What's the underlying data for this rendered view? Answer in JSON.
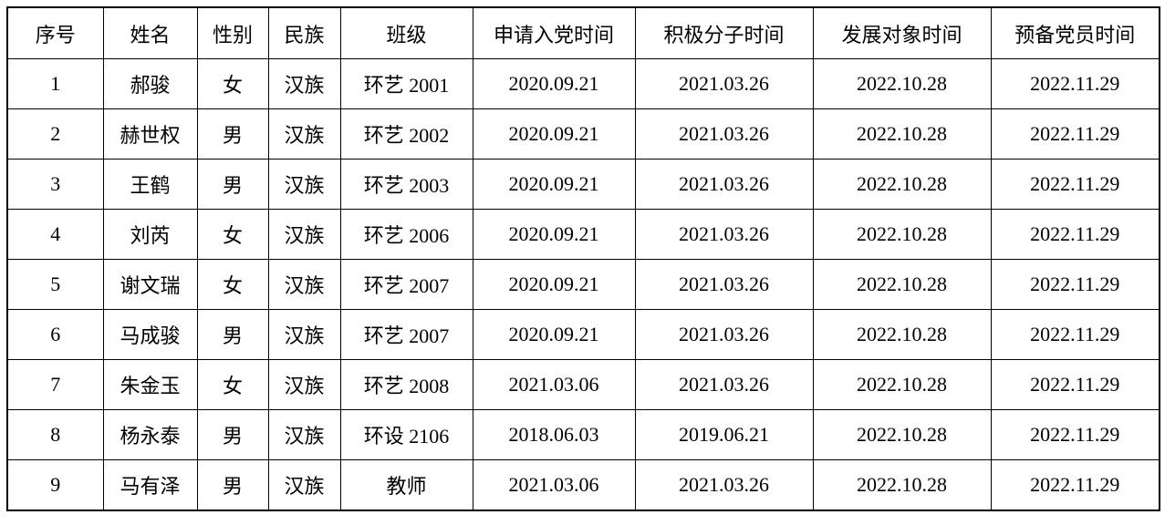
{
  "page": {
    "background_color": "#ffffff",
    "text_color": "#000000",
    "border_color": "#000000"
  },
  "table": {
    "headers": [
      "序号",
      "姓名",
      "性别",
      "民族",
      "班级",
      "申请入党时间",
      "积极分子时间",
      "发展对象时间",
      "预备党员时间"
    ],
    "rows": [
      [
        "1",
        "郝骏",
        "女",
        "汉族",
        "环艺 2001",
        "2020.09.21",
        "2021.03.26",
        "2022.10.28",
        "2022.11.29"
      ],
      [
        "2",
        "赫世权",
        "男",
        "汉族",
        "环艺 2002",
        "2020.09.21",
        "2021.03.26",
        "2022.10.28",
        "2022.11.29"
      ],
      [
        "3",
        "王鹤",
        "男",
        "汉族",
        "环艺 2003",
        "2020.09.21",
        "2021.03.26",
        "2022.10.28",
        "2022.11.29"
      ],
      [
        "4",
        "刘芮",
        "女",
        "汉族",
        "环艺 2006",
        "2020.09.21",
        "2021.03.26",
        "2022.10.28",
        "2022.11.29"
      ],
      [
        "5",
        "谢文瑞",
        "女",
        "汉族",
        "环艺 2007",
        "2020.09.21",
        "2021.03.26",
        "2022.10.28",
        "2022.11.29"
      ],
      [
        "6",
        "马成骏",
        "男",
        "汉族",
        "环艺 2007",
        "2020.09.21",
        "2021.03.26",
        "2022.10.28",
        "2022.11.29"
      ],
      [
        "7",
        "朱金玉",
        "女",
        "汉族",
        "环艺 2008",
        "2021.03.06",
        "2021.03.26",
        "2022.10.28",
        "2022.11.29"
      ],
      [
        "8",
        "杨永泰",
        "男",
        "汉族",
        "环设 2106",
        "2018.06.03",
        "2019.06.21",
        "2022.10.28",
        "2022.11.29"
      ],
      [
        "9",
        "马有泽",
        "男",
        "汉族",
        "教师",
        "2021.03.06",
        "2021.03.26",
        "2022.10.28",
        "2022.11.29"
      ]
    ]
  }
}
